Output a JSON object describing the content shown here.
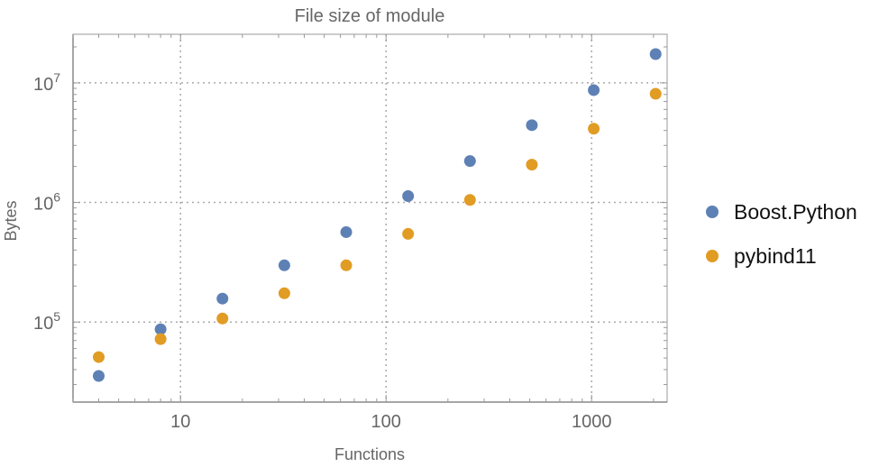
{
  "chart_data": {
    "type": "scatter",
    "title": "File size of module",
    "xlabel": "Functions",
    "ylabel": "Bytes",
    "xscale": "log",
    "yscale": "log",
    "xlim": [
      3.0,
      2330
    ],
    "ylim": [
      21400,
      25500000
    ],
    "grid": true,
    "legend_position": "right",
    "x_ticks": [
      {
        "value": 10,
        "label": "10"
      },
      {
        "value": 100,
        "label": "100"
      },
      {
        "value": 1000,
        "label": "1000"
      }
    ],
    "y_ticks": [
      {
        "value": 100000,
        "base": "10",
        "exp": "5"
      },
      {
        "value": 1000000,
        "base": "10",
        "exp": "6"
      },
      {
        "value": 10000000,
        "base": "10",
        "exp": "7"
      }
    ],
    "x": [
      4,
      8,
      16,
      32,
      64,
      128,
      256,
      512,
      1024,
      2048
    ],
    "series": [
      {
        "name": "Boost.Python",
        "color": "#5e81b5",
        "values": [
          35400,
          87000,
          157000,
          298000,
          565000,
          1130000,
          2220000,
          4430000,
          8700000,
          17400000
        ]
      },
      {
        "name": "pybind11",
        "color": "#e19c24",
        "values": [
          50900,
          72000,
          107000,
          174000,
          298000,
          546000,
          1050000,
          2070000,
          4140000,
          8100000
        ]
      }
    ]
  }
}
